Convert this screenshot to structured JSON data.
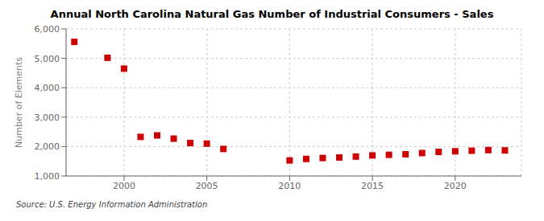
{
  "chart_data": {
    "type": "scatter",
    "title": "Annual North Carolina Natural Gas Number of Industrial Consumers - Sales",
    "ylabel": "Number of Elements",
    "annotations": [
      "Source: U.S. Energy Information Administration"
    ],
    "x": [
      1997,
      1999,
      2000,
      2001,
      2002,
      2003,
      2004,
      2005,
      2006,
      2010,
      2011,
      2012,
      2013,
      2014,
      2015,
      2016,
      2017,
      2018,
      2019,
      2020,
      2021,
      2022,
      2023
    ],
    "values": [
      5560,
      5020,
      4650,
      2330,
      2380,
      2270,
      2120,
      2100,
      1920,
      1530,
      1580,
      1610,
      1630,
      1660,
      1700,
      1720,
      1740,
      1780,
      1820,
      1840,
      1860,
      1880,
      1870
    ],
    "color": "#cc0000",
    "marker": "square",
    "xlim": [
      1996.5,
      2024
    ],
    "xticks": [
      2000,
      2005,
      2010,
      2015,
      2020
    ],
    "ylim": [
      1000,
      6000
    ],
    "yticks": [
      {
        "value": 1000,
        "label": "1,000"
      },
      {
        "value": 2000,
        "label": "2,000"
      },
      {
        "value": 3000,
        "label": "3,000"
      },
      {
        "value": 4000,
        "label": "4,000"
      },
      {
        "value": 5000,
        "label": "5,000"
      },
      {
        "value": 6000,
        "label": "6,000"
      }
    ],
    "grid": true
  }
}
